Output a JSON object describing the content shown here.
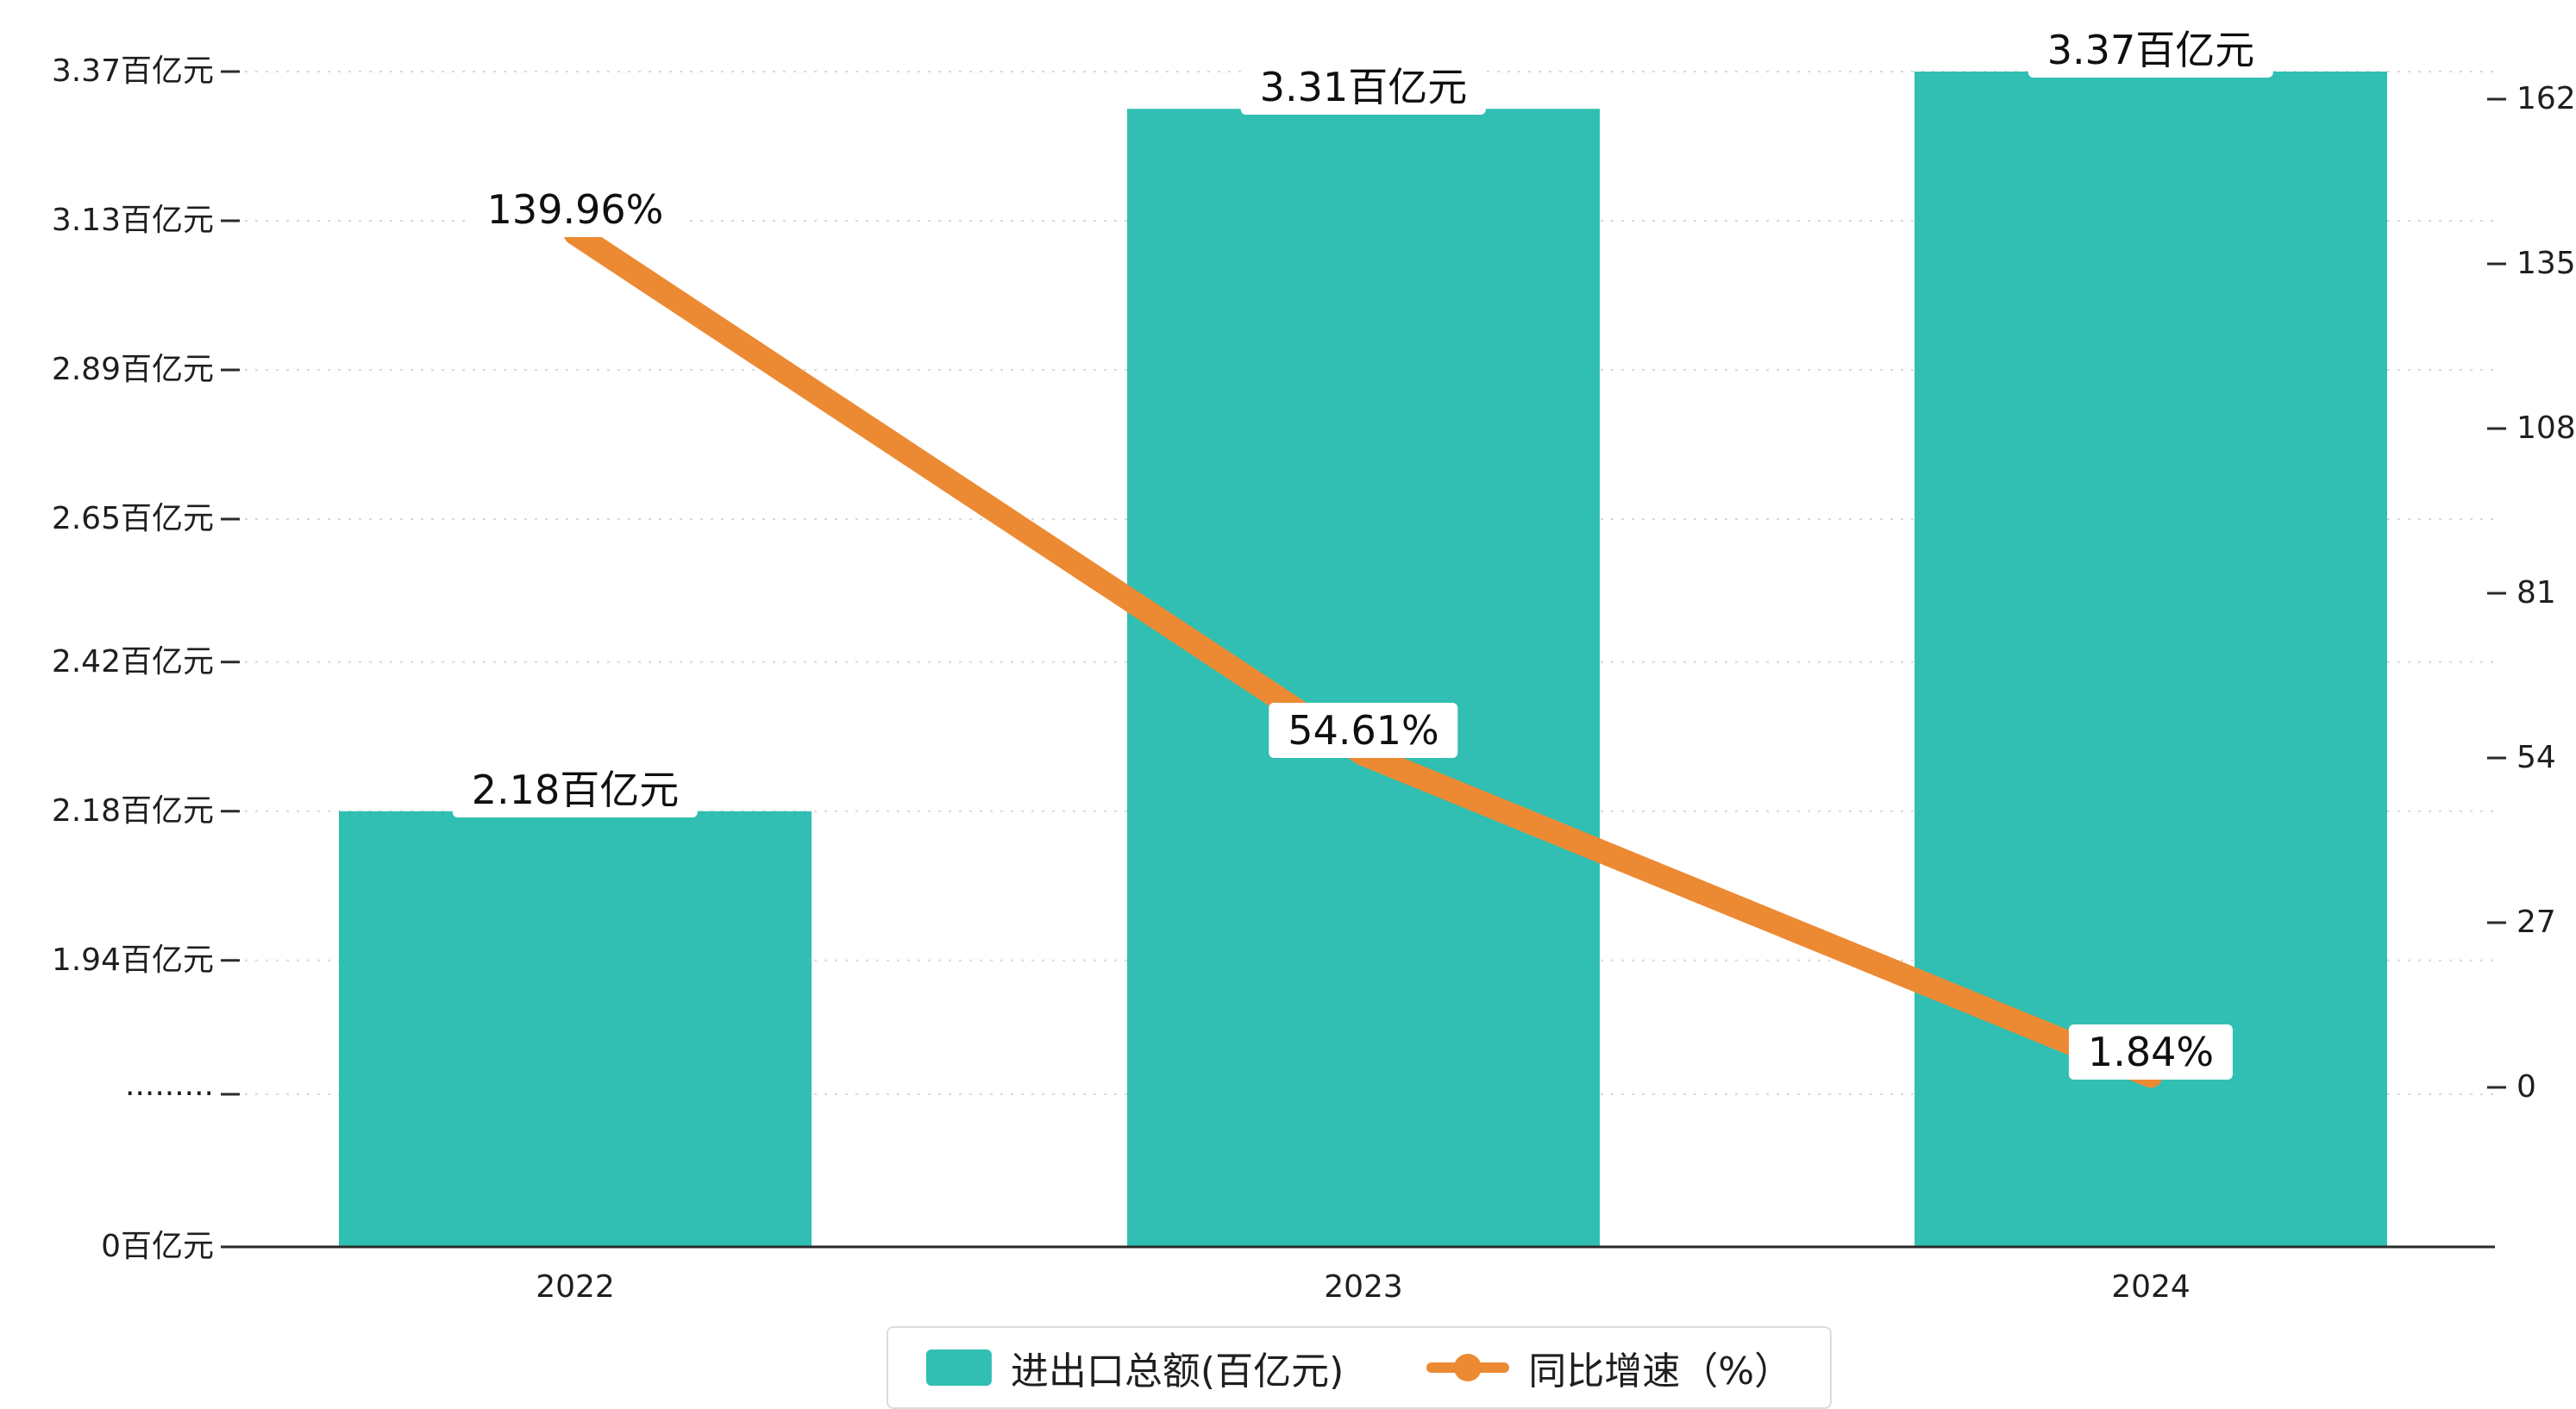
{
  "chart_data": {
    "type": "bar+line",
    "categories": [
      "2022",
      "2023",
      "2024"
    ],
    "series": [
      {
        "name": "进出口总额(百亿元)",
        "type": "bar",
        "axis": "left",
        "unit": "百亿元",
        "values": [
          2.18,
          3.31,
          3.37
        ],
        "labels": [
          "2.18百亿元",
          "3.31百亿元",
          "3.37百亿元"
        ],
        "color": "#30bfb2"
      },
      {
        "name": "同比增速（%）",
        "type": "line",
        "axis": "right",
        "unit": "%",
        "values": [
          139.96,
          54.61,
          1.84
        ],
        "labels": [
          "139.96%",
          "54.61%",
          "1.84%"
        ],
        "color": "#ec8a33"
      }
    ],
    "left_axis": {
      "ticks": [
        {
          "label": "3.37百亿元",
          "value": 3.37
        },
        {
          "label": "3.13百亿元",
          "value": 3.13
        },
        {
          "label": "2.89百亿元",
          "value": 2.89
        },
        {
          "label": "2.65百亿元",
          "value": 2.65
        },
        {
          "label": "2.42百亿元",
          "value": 2.42
        },
        {
          "label": "2.18百亿元",
          "value": 2.18
        },
        {
          "label": "1.94百亿元",
          "value": 1.94
        },
        {
          "label": "·········",
          "value": null,
          "axis_break": true
        },
        {
          "label": "0百亿元",
          "value": 0
        }
      ]
    },
    "right_axis": {
      "ticks": [
        162,
        135,
        108,
        81,
        54,
        27,
        0
      ],
      "min": 0,
      "max": 162
    },
    "x_axis": {
      "labels": [
        "2022",
        "2023",
        "2024"
      ]
    },
    "grid": true,
    "legend_position": "bottom"
  },
  "legend": {
    "items": [
      {
        "label": "进出口总额(百亿元)"
      },
      {
        "label": "同比增速（%）"
      }
    ]
  },
  "colors": {
    "bar": "#30bfb2",
    "line": "#ec8a33",
    "axis": "#2a2a2a",
    "text": "#1f1f1f",
    "grid": "#d9d9d9",
    "label_bg": "#ffffff",
    "legend_border": "#dcdcdc",
    "background": "#ffffff"
  }
}
